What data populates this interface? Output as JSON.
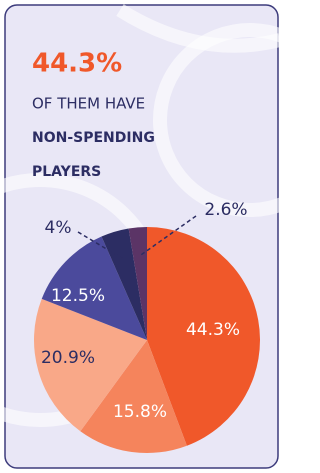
{
  "chart_data": {
    "type": "pie",
    "headline": "44.3%",
    "subtitle": "OF THEM HAVE",
    "title_lines": [
      "NON-SPENDING",
      "PLAYERS"
    ],
    "values": [
      44.3,
      15.8,
      20.9,
      12.5,
      4,
      2.6
    ],
    "value_labels": [
      "44.3%",
      "15.8%",
      "20.9%",
      "12.5%",
      "4%",
      "2.6%"
    ],
    "colors": [
      "#f0582a",
      "#f5845c",
      "#f9a888",
      "#4b4a9c",
      "#2c2d63",
      "#5b3466"
    ]
  }
}
